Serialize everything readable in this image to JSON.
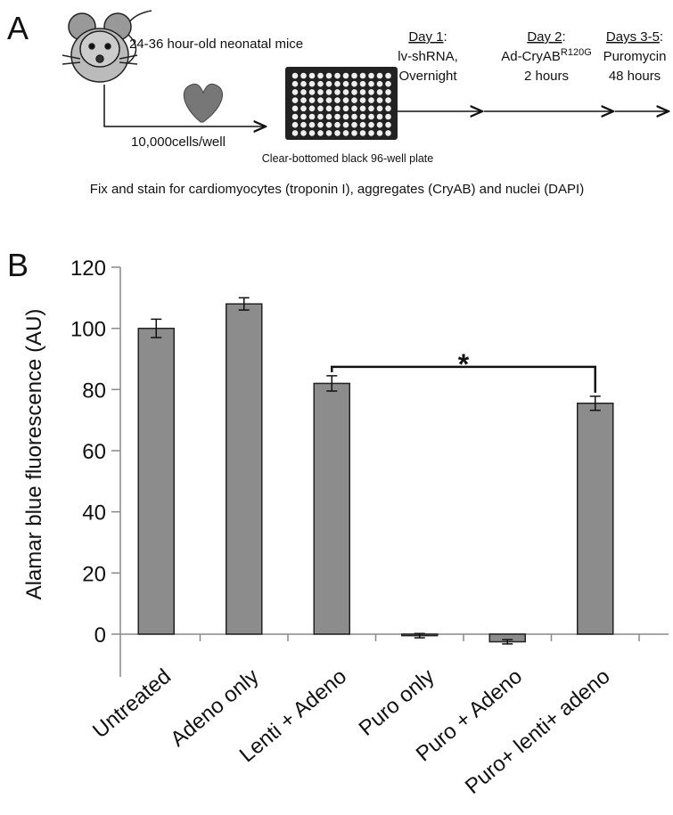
{
  "panel_a": {
    "label": "A",
    "mice": "24-36 hour-old neonatal mice",
    "cells": "10,000cells/well",
    "plate": "Clear-bottomed black 96-well plate",
    "steps": [
      {
        "day": "Day 1",
        "sep": ":",
        "lines": [
          "lv-shRNA,",
          "Overnight"
        ]
      },
      {
        "day": "Day 2",
        "sep": ":",
        "lines": [
          {
            "text": "Ad-CryAB",
            "sup": "R120G"
          },
          "2 hours"
        ]
      },
      {
        "day": "Days 3-5",
        "sep": ":",
        "lines": [
          "Puromycin",
          "48 hours"
        ]
      }
    ],
    "footer": "Fix and stain for cardiomyocytes (troponin I), aggregates (CryAB) and nuclei (DAPI)"
  },
  "chart_data": {
    "type": "bar",
    "panel_label": "B",
    "y_label": "Alamar blue fluorescence (AU)",
    "categories": [
      "Untreated",
      "Adeno only",
      "Lenti + Adeno",
      "Puro only",
      "Puro + Adeno",
      "Puro+ lenti+ adeno"
    ],
    "values": [
      100,
      108,
      82,
      -0.5,
      -2.5,
      75.5
    ],
    "errors": [
      3,
      2,
      2.5,
      0.7,
      0.7,
      2.3
    ],
    "color": "#8c8c8c",
    "ylim": [
      -14,
      120
    ],
    "yticks": [
      0,
      20,
      40,
      60,
      80,
      100,
      120
    ],
    "annotation": "*"
  }
}
